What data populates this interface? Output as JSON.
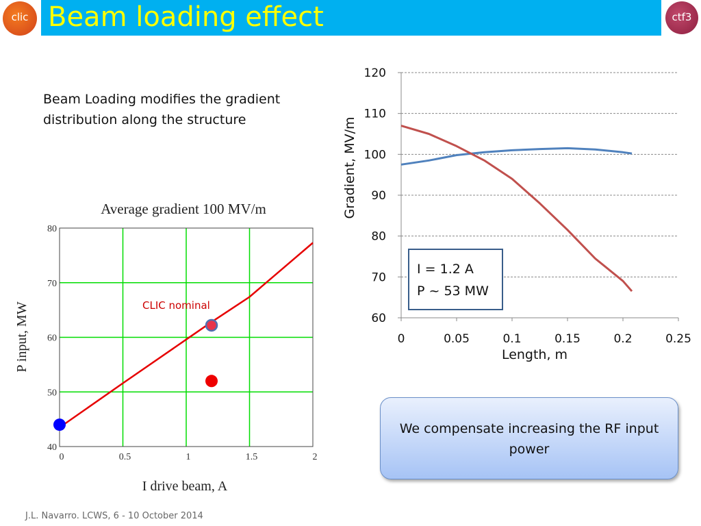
{
  "slide": {
    "title": "Beam loading effect",
    "logo_left_text": "clic",
    "logo_right_text": "ctf3",
    "intro_text": "Beam Loading modifies the gradient distribution along the structure",
    "callout_text": "We compensate increasing the RF input power",
    "footer": "J.L. Navarro. LCWS, 6 - 10 October 2014"
  },
  "colors": {
    "title_bar": "#00b0f0",
    "title_text": "#ffff00",
    "grid_green": "#00dd00",
    "red": "#e60000",
    "blue": "#4f81bd",
    "dark_red": "#c0504d"
  },
  "chart_data": [
    {
      "type": "line",
      "title": "Average gradient 100 MV/m",
      "xlabel": "I drive beam, A",
      "ylabel": "P input, MW",
      "xlim": [
        0,
        2
      ],
      "ylim": [
        40,
        80
      ],
      "xticks": [
        "0",
        "0.5",
        "1",
        "1.5",
        "2"
      ],
      "yticks": [
        "40",
        "50",
        "60",
        "70",
        "80"
      ],
      "grid": true,
      "series": [
        {
          "name": "",
          "color": "#e60000",
          "x": [
            0,
            0.5,
            1.0,
            1.2,
            1.5,
            2.0
          ],
          "y": [
            43.5,
            51.6,
            59.6,
            62.8,
            67.4,
            77.3
          ]
        }
      ],
      "points": [
        {
          "x": 0,
          "y": 44,
          "color": "#0000ff"
        },
        {
          "x": 1.2,
          "y": 62.2,
          "color": "#e8344a"
        },
        {
          "x": 1.2,
          "y": 52,
          "color": "#ee0000"
        }
      ],
      "annotations": [
        {
          "text": "CLIC nominal",
          "x": 0.65,
          "y": 65.5
        }
      ]
    },
    {
      "type": "line",
      "title": "",
      "xlabel": "Length, m",
      "ylabel": "Gradient, MV/m",
      "xlim": [
        0,
        0.25
      ],
      "ylim": [
        60,
        120
      ],
      "xticks": [
        "0",
        "0.05",
        "0.1",
        "0.15",
        "0.2",
        "0.25"
      ],
      "yticks": [
        "60",
        "70",
        "80",
        "90",
        "100",
        "110",
        "120"
      ],
      "grid": true,
      "legend_box": {
        "lines": [
          "I = 1.2 A",
          "P ~ 53 MW"
        ],
        "placement": "bottom-left"
      },
      "series": [
        {
          "name": "",
          "color": "#4f81bd",
          "x": [
            0,
            0.025,
            0.05,
            0.075,
            0.1,
            0.125,
            0.15,
            0.175,
            0.2,
            0.208
          ],
          "y": [
            97.5,
            98.5,
            99.8,
            100.5,
            101.0,
            101.3,
            101.5,
            101.2,
            100.5,
            100.2
          ]
        },
        {
          "name": "",
          "color": "#c0504d",
          "x": [
            0,
            0.025,
            0.05,
            0.075,
            0.1,
            0.125,
            0.15,
            0.175,
            0.2,
            0.208
          ],
          "y": [
            107,
            105,
            102,
            98.5,
            94,
            88,
            81.5,
            74.5,
            69,
            66.5
          ]
        }
      ]
    }
  ]
}
